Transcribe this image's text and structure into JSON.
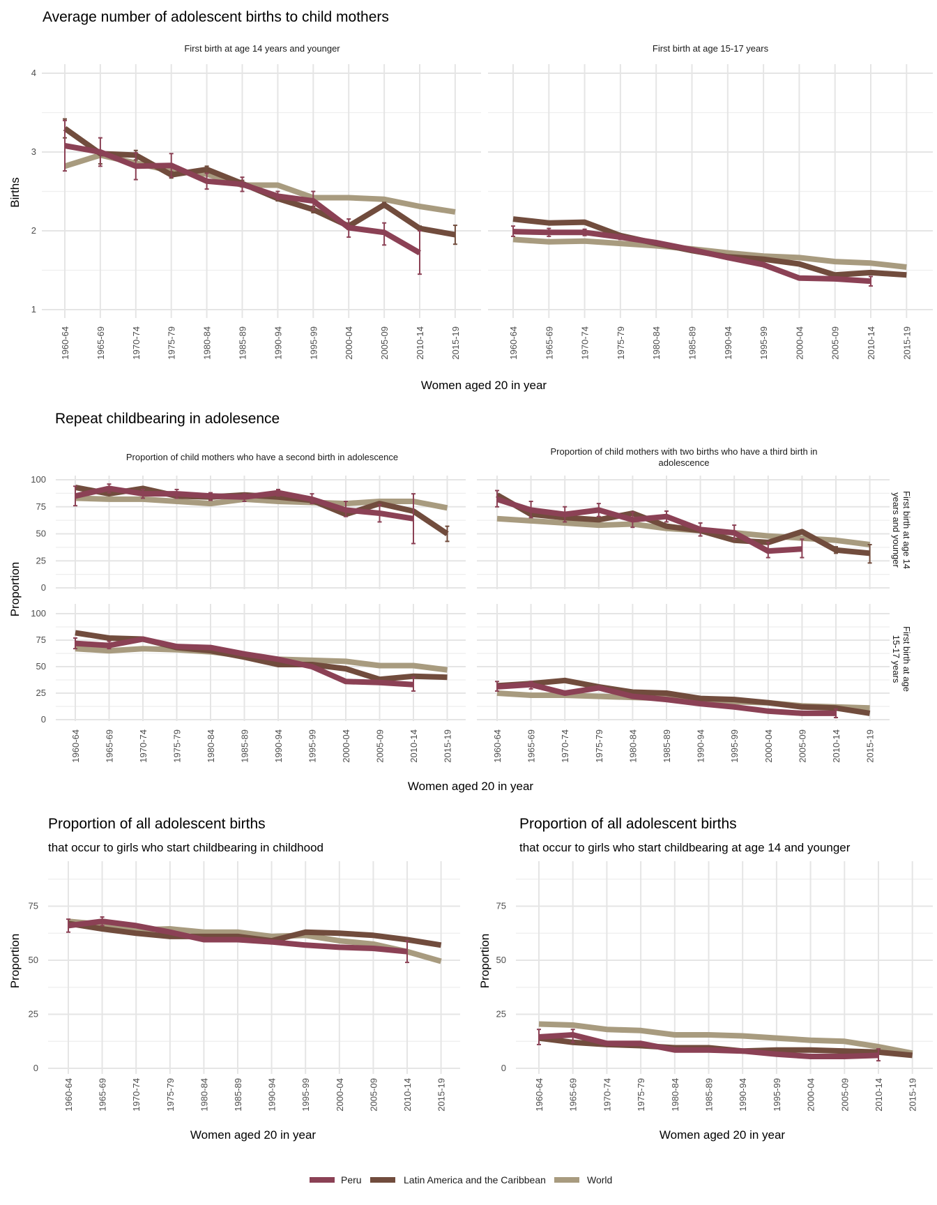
{
  "colors": {
    "Peru": "#8B4155",
    "Latin America and the Caribbean": "#714C3D",
    "World": "#A89B7F"
  },
  "legend": {
    "items": [
      "Peru",
      "Latin America and the Caribbean",
      "World"
    ]
  },
  "sections": {
    "top": {
      "title": "Average number of adolescent births to child mothers",
      "xlabel": "Women aged 20 in year",
      "ylabel": "Births"
    },
    "middle": {
      "title": "Repeat childbearing in adolesence",
      "xlabel": "Women aged 20 in year",
      "ylabel": "Proportion",
      "row_strips": [
        "First birth at age 14 years and younger",
        "First birth at age 15-17 years"
      ]
    },
    "bottom_left": {
      "title": "Proportion of all adolescent births",
      "subtitle": "that occur to girls who start childbearing in childhood",
      "xlabel": "Women aged 20 in year",
      "ylabel": "Proportion"
    },
    "bottom_right": {
      "title": "Proportion of all adolescent births",
      "subtitle": "that occur to girls who start childbearing at age 14 and younger",
      "xlabel": "Women aged 20 in year",
      "ylabel": "Proportion"
    }
  },
  "chart_data": [
    {
      "id": "births_14",
      "type": "line",
      "title": "First birth at age 14 years and younger",
      "xlabel": "Women aged 20 in year",
      "ylabel": "Births",
      "categories": [
        "1960-64",
        "1965-69",
        "1970-74",
        "1975-79",
        "1980-84",
        "1985-89",
        "1990-94",
        "1995-99",
        "2000-04",
        "2005-09",
        "2010-14",
        "2015-19"
      ],
      "ylim": [
        1,
        4
      ],
      "yticks": [
        1,
        2,
        3,
        4
      ],
      "series": [
        {
          "name": "Peru",
          "values": [
            3.08,
            3.0,
            2.82,
            2.83,
            2.63,
            2.59,
            2.44,
            2.38,
            2.04,
            1.98,
            1.72,
            null
          ],
          "error": [
            [
              2.76,
              3.4
            ],
            [
              2.82,
              3.18
            ],
            [
              2.65,
              2.99
            ],
            [
              2.68,
              2.98
            ],
            [
              2.53,
              2.73
            ],
            [
              2.5,
              2.68
            ],
            [
              2.4,
              2.5
            ],
            [
              2.27,
              2.5
            ],
            [
              1.92,
              2.15
            ],
            [
              1.82,
              2.1
            ],
            [
              1.45,
              2.0
            ],
            null
          ]
        },
        {
          "name": "Latin America and the Caribbean",
          "values": [
            3.3,
            2.98,
            2.96,
            2.71,
            2.78,
            2.6,
            2.41,
            2.27,
            2.06,
            2.33,
            2.03,
            1.95
          ],
          "error": [
            [
              3.18,
              3.42
            ],
            [
              2.85,
              3.01
            ],
            [
              2.9,
              3.02
            ],
            [
              2.67,
              2.75
            ],
            [
              2.74,
              2.82
            ],
            [
              2.56,
              2.64
            ],
            [
              2.38,
              2.45
            ],
            [
              2.23,
              2.31
            ],
            [
              2.02,
              2.1
            ],
            [
              2.3,
              2.36
            ],
            [
              2.0,
              2.06
            ],
            [
              1.83,
              2.07
            ]
          ]
        },
        {
          "name": "World",
          "values": [
            2.82,
            2.96,
            2.86,
            2.76,
            2.72,
            2.58,
            2.58,
            2.42,
            2.42,
            2.4,
            2.31,
            2.24
          ]
        }
      ]
    },
    {
      "id": "births_1517",
      "type": "line",
      "title": "First birth at age 15-17 years",
      "categories": [
        "1960-64",
        "1965-69",
        "1970-74",
        "1975-79",
        "1980-84",
        "1985-89",
        "1990-94",
        "1995-99",
        "2000-04",
        "2005-09",
        "2010-14",
        "2015-19"
      ],
      "ylim": [
        1,
        4
      ],
      "yticks": [
        1,
        2,
        3,
        4
      ],
      "series": [
        {
          "name": "Peru",
          "values": [
            1.99,
            1.98,
            1.98,
            1.92,
            1.85,
            1.76,
            1.66,
            1.57,
            1.4,
            1.39,
            1.36,
            null
          ],
          "error": [
            [
              1.93,
              2.06
            ],
            [
              1.93,
              2.03
            ],
            [
              1.94,
              2.02
            ],
            [
              1.89,
              1.95
            ],
            [
              1.83,
              1.87
            ],
            [
              1.74,
              1.78
            ],
            [
              1.64,
              1.68
            ],
            [
              1.55,
              1.59
            ],
            [
              1.38,
              1.42
            ],
            [
              1.37,
              1.41
            ],
            [
              1.3,
              1.42
            ],
            null
          ]
        },
        {
          "name": "Latin America and the Caribbean",
          "values": [
            2.15,
            2.1,
            2.11,
            1.94,
            1.84,
            1.75,
            1.67,
            1.64,
            1.58,
            1.44,
            1.47,
            1.44
          ]
        },
        {
          "name": "World",
          "values": [
            1.89,
            1.86,
            1.87,
            1.84,
            1.81,
            1.77,
            1.72,
            1.68,
            1.66,
            1.61,
            1.59,
            1.54
          ]
        }
      ]
    },
    {
      "id": "second_14",
      "type": "line",
      "title": "Proportion of child mothers who have a second birth in adolescence",
      "row": "First birth at age 14 years and younger",
      "categories": [
        "1960-64",
        "1965-69",
        "1970-74",
        "1975-79",
        "1980-84",
        "1985-89",
        "1990-94",
        "1995-99",
        "2000-04",
        "2005-09",
        "2010-14",
        "2015-19"
      ],
      "ylim": [
        0,
        100
      ],
      "yticks": [
        0,
        25,
        50,
        75,
        100
      ],
      "series": [
        {
          "name": "Peru",
          "values": [
            85,
            92,
            87,
            87,
            85,
            84,
            88,
            82,
            72,
            69,
            64,
            null
          ],
          "error": [
            [
              76,
              94
            ],
            [
              88,
              96
            ],
            [
              83,
              91
            ],
            [
              83,
              91
            ],
            [
              81,
              88
            ],
            [
              80,
              87
            ],
            [
              85,
              91
            ],
            [
              78,
              87
            ],
            [
              66,
              80
            ],
            [
              61,
              77
            ],
            [
              41,
              87
            ],
            null
          ]
        },
        {
          "name": "Latin America and the Caribbean",
          "values": [
            93,
            87,
            92,
            85,
            84,
            86,
            84,
            81,
            68,
            78,
            71,
            50
          ],
          "error": [
            null,
            null,
            null,
            null,
            null,
            null,
            null,
            null,
            null,
            null,
            null,
            [
              43,
              57
            ]
          ]
        },
        {
          "name": "World",
          "values": [
            83,
            82,
            82,
            80,
            78,
            82,
            80,
            79,
            78,
            80,
            80,
            74
          ]
        }
      ]
    },
    {
      "id": "third_14",
      "type": "line",
      "title": "Proportion of child mothers with two births who have a third birth in adolescence",
      "row": "First birth at age 14 years and younger",
      "categories": [
        "1960-64",
        "1965-69",
        "1970-74",
        "1975-79",
        "1980-84",
        "1985-89",
        "1990-94",
        "1995-99",
        "2000-04",
        "2005-09",
        "2010-14",
        "2015-19"
      ],
      "ylim": [
        0,
        100
      ],
      "yticks": [
        0,
        25,
        50,
        75,
        100
      ],
      "series": [
        {
          "name": "Peru",
          "values": [
            82,
            72,
            68,
            72,
            63,
            66,
            54,
            51,
            34,
            36,
            null,
            null
          ],
          "error": [
            [
              75,
              90
            ],
            [
              65,
              80
            ],
            [
              61,
              75
            ],
            [
              66,
              78
            ],
            [
              56,
              70
            ],
            [
              61,
              71
            ],
            [
              48,
              60
            ],
            [
              45,
              58
            ],
            [
              28,
              42
            ],
            [
              28,
              45
            ],
            null,
            null
          ]
        },
        {
          "name": "Latin America and the Caribbean",
          "values": [
            86,
            68,
            65,
            63,
            69,
            57,
            53,
            44,
            42,
            52,
            35,
            32
          ],
          "error": [
            null,
            null,
            null,
            null,
            null,
            null,
            null,
            null,
            null,
            null,
            [
              32,
              38
            ],
            [
              23,
              40
            ]
          ]
        },
        {
          "name": "World",
          "values": [
            64,
            62,
            60,
            58,
            59,
            55,
            53,
            51,
            48,
            46,
            44,
            40
          ]
        }
      ]
    },
    {
      "id": "second_1517",
      "type": "line",
      "title": "Proportion of child mothers who have a second birth in adolescence",
      "row": "First birth at age 15-17 years",
      "categories": [
        "1960-64",
        "1965-69",
        "1970-74",
        "1975-79",
        "1980-84",
        "1985-89",
        "1990-94",
        "1995-99",
        "2000-04",
        "2005-09",
        "2010-14",
        "2015-19"
      ],
      "ylim": [
        0,
        100
      ],
      "yticks": [
        0,
        25,
        50,
        75,
        100
      ],
      "series": [
        {
          "name": "Peru",
          "values": [
            72,
            70,
            76,
            69,
            68,
            62,
            57,
            50,
            36,
            35,
            33,
            null
          ],
          "error": [
            [
              67,
              77
            ],
            [
              67,
              74
            ],
            null,
            null,
            null,
            null,
            null,
            null,
            null,
            null,
            [
              27,
              40
            ],
            null
          ]
        },
        {
          "name": "Latin America and the Caribbean",
          "values": [
            82,
            77,
            76,
            68,
            65,
            59,
            52,
            52,
            48,
            38,
            41,
            40
          ]
        },
        {
          "name": "World",
          "values": [
            67,
            65,
            67,
            66,
            64,
            60,
            57,
            56,
            55,
            51,
            51,
            47
          ]
        }
      ]
    },
    {
      "id": "third_1517",
      "type": "line",
      "title": "Proportion of child mothers with two births who have a third birth in adolescence",
      "row": "First birth at age 15-17 years",
      "categories": [
        "1960-64",
        "1965-69",
        "1970-74",
        "1975-79",
        "1980-84",
        "1985-89",
        "1990-94",
        "1995-99",
        "2000-04",
        "2005-09",
        "2010-14",
        "2015-19"
      ],
      "ylim": [
        0,
        100
      ],
      "yticks": [
        0,
        25,
        50,
        75,
        100
      ],
      "series": [
        {
          "name": "Peru",
          "values": [
            31,
            33,
            25,
            30,
            22,
            19,
            15,
            12,
            8,
            6,
            6,
            null
          ],
          "error": [
            [
              27,
              36
            ],
            [
              29,
              36
            ],
            null,
            null,
            null,
            null,
            null,
            null,
            null,
            null,
            [
              2,
              10
            ],
            null
          ]
        },
        {
          "name": "Latin America and the Caribbean",
          "values": [
            32,
            34,
            37,
            31,
            26,
            25,
            20,
            19,
            16,
            12,
            11,
            6
          ]
        },
        {
          "name": "World",
          "values": [
            25,
            23,
            23,
            22,
            21,
            20,
            19,
            17,
            16,
            13,
            12,
            11
          ]
        }
      ]
    },
    {
      "id": "share_childhood",
      "type": "line",
      "title": "Proportion of all adolescent births",
      "subtitle": "that occur to girls who start childbearing in childhood",
      "xlabel": "Women aged 20 in year",
      "ylabel": "Proportion",
      "categories": [
        "1960-64",
        "1965-69",
        "1970-74",
        "1975-79",
        "1980-84",
        "1985-89",
        "1990-94",
        "1995-99",
        "2000-04",
        "2005-09",
        "2010-14",
        "2015-19"
      ],
      "ylim": [
        0,
        90
      ],
      "yticks": [
        0,
        25,
        50,
        75
      ],
      "series": [
        {
          "name": "Peru",
          "values": [
            66,
            68,
            66,
            63,
            59.5,
            59.5,
            58.5,
            57,
            56,
            55.5,
            54,
            null
          ],
          "error": [
            [
              63,
              69
            ],
            [
              66,
              70
            ],
            null,
            null,
            null,
            null,
            null,
            null,
            null,
            null,
            [
              49,
              59
            ],
            null
          ]
        },
        {
          "name": "Latin America and the Caribbean",
          "values": [
            67,
            64.5,
            62.5,
            61,
            61,
            61,
            59,
            63,
            62.5,
            61.5,
            59.5,
            57
          ]
        },
        {
          "name": "World",
          "values": [
            68,
            66.5,
            64,
            64.5,
            63,
            63,
            61,
            61.5,
            59,
            57.5,
            54,
            49.5
          ]
        }
      ]
    },
    {
      "id": "share_14",
      "type": "line",
      "title": "Proportion of all adolescent births",
      "subtitle": "that occur to girls who start childbearing at age 14 and younger",
      "xlabel": "Women aged 20 in year",
      "ylabel": "Proportion",
      "categories": [
        "1960-64",
        "1965-69",
        "1970-74",
        "1975-79",
        "1980-84",
        "1985-89",
        "1990-94",
        "1995-99",
        "2000-04",
        "2005-09",
        "2010-14",
        "2015-19"
      ],
      "ylim": [
        0,
        90
      ],
      "yticks": [
        0,
        25,
        50,
        75
      ],
      "series": [
        {
          "name": "Peru",
          "values": [
            14.5,
            15.5,
            11.5,
            11.5,
            8.5,
            8.5,
            8,
            6.5,
            5.5,
            5.5,
            6,
            null
          ],
          "error": [
            [
              11,
              18
            ],
            [
              12,
              18
            ],
            null,
            null,
            null,
            null,
            null,
            null,
            null,
            null,
            [
              3.5,
              9
            ],
            null
          ]
        },
        {
          "name": "Latin America and the Caribbean",
          "values": [
            14,
            12,
            11,
            10.5,
            9.5,
            9.5,
            8,
            8.5,
            8.5,
            8,
            7.5,
            6
          ]
        },
        {
          "name": "World",
          "values": [
            20.5,
            20,
            18,
            17.5,
            15.5,
            15.5,
            15,
            14,
            13,
            12.5,
            10,
            7
          ]
        }
      ]
    }
  ]
}
